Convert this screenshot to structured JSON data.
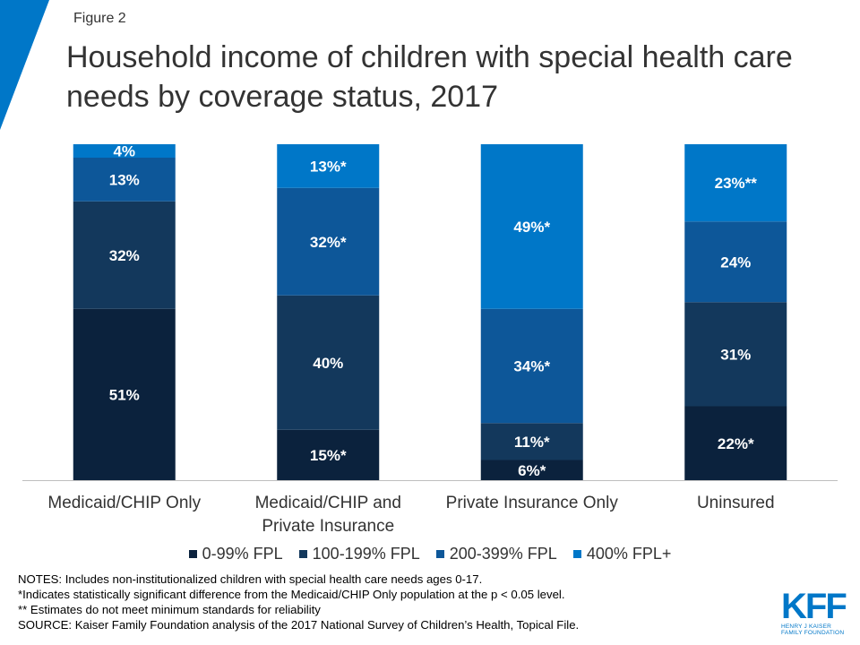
{
  "figure_label": "Figure 2",
  "title": "Household income of children with special health care needs by coverage status, 2017",
  "colors": {
    "corner": "#0077c8",
    "fpl_0_99": "#0b223d",
    "fpl_100_199": "#13385c",
    "fpl_200_399": "#0d5799",
    "fpl_400_plus": "#0077c8"
  },
  "chart_data": {
    "type": "bar",
    "stacked": true,
    "title": "Household income of children with special health care needs by coverage status, 2017",
    "categories": [
      [
        "Medicaid/CHIP Only"
      ],
      [
        "Medicaid/CHIP and",
        "Private Insurance"
      ],
      [
        "Private Insurance Only"
      ],
      [
        "Uninsured"
      ]
    ],
    "series": [
      {
        "name": "0-99% FPL",
        "color": "#0b223d",
        "values": [
          51,
          15,
          6,
          22
        ],
        "labels": [
          "51%",
          "15%*",
          "6%*",
          "22%*"
        ]
      },
      {
        "name": "100-199% FPL",
        "color": "#13385c",
        "values": [
          32,
          40,
          11,
          31
        ],
        "labels": [
          "32%",
          "40%",
          "11%*",
          "31%"
        ]
      },
      {
        "name": "200-399% FPL",
        "color": "#0d5799",
        "values": [
          13,
          32,
          34,
          24
        ],
        "labels": [
          "13%",
          "32%*",
          "34%*",
          "24%"
        ]
      },
      {
        "name": "400% FPL+",
        "color": "#0077c8",
        "values": [
          4,
          13,
          49,
          23
        ],
        "labels": [
          "4%",
          "13%*",
          "49%*",
          "23%**"
        ]
      }
    ],
    "ylim": [
      0,
      100
    ],
    "xlabel": "",
    "ylabel": "",
    "legend_position": "bottom"
  },
  "notes": [
    "NOTES: Includes non-institutionalized  children with special health care needs ages 0-17.",
    "*Indicates statistically significant difference from the Medicaid/CHIP Only population at the p < 0.05 level.",
    "** Estimates do not meet minimum standards for reliability",
    "SOURCE: Kaiser Family Foundation analysis of the 2017 National Survey of Children’s Health, Topical File."
  ],
  "logo": {
    "text": "KFF",
    "subtitle_line1": "HENRY J KAISER",
    "subtitle_line2": "FAMILY FOUNDATION"
  }
}
